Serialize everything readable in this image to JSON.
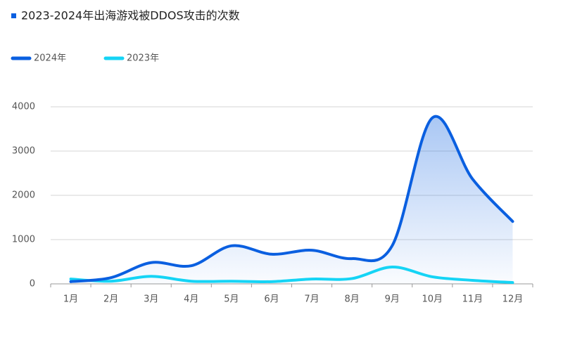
{
  "chart_data": {
    "type": "line",
    "title": "2023-2024年出海游戏被DDOS攻击的次数",
    "categories": [
      "1月",
      "2月",
      "3月",
      "4月",
      "5月",
      "6月",
      "7月",
      "8月",
      "9月",
      "10月",
      "11月",
      "12月"
    ],
    "series": [
      {
        "name": "2024年",
        "color": "#0a5fe0",
        "values": [
          50,
          140,
          480,
          410,
          860,
          670,
          760,
          570,
          860,
          3750,
          2370,
          1410
        ]
      },
      {
        "name": "2023年",
        "color": "#15d4f5",
        "values": [
          110,
          60,
          170,
          60,
          60,
          50,
          110,
          120,
          380,
          160,
          80,
          30
        ]
      }
    ],
    "ylim": [
      0,
      4000
    ],
    "yticks": [
      0,
      1000,
      2000,
      3000,
      4000
    ],
    "grid": true,
    "smooth": true
  }
}
